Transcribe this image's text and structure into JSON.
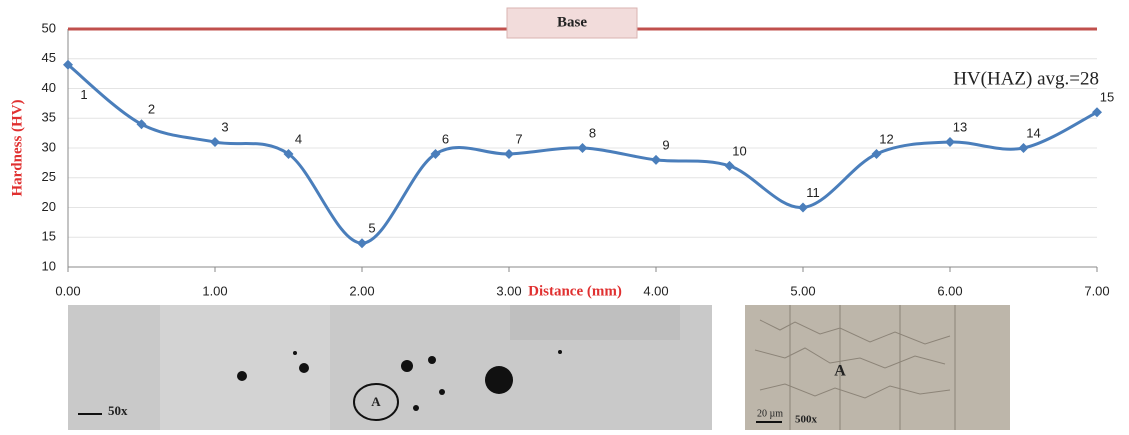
{
  "chart_data": {
    "type": "line",
    "ylabel": "Hardness (HV)",
    "xlabel": "Distance (mm)",
    "x": [
      0,
      0.5,
      1,
      1.5,
      2,
      2.5,
      3,
      3.5,
      4,
      4.5,
      5,
      5.5,
      6,
      6.5,
      7
    ],
    "series": [
      {
        "color": "#4a7ebb",
        "values": [
          44,
          34,
          31,
          29,
          14,
          29,
          29,
          30,
          28,
          27,
          20,
          29,
          31,
          30,
          36
        ],
        "point_labels": [
          "1",
          "2",
          "3",
          "4",
          "5",
          "6",
          "7",
          "8",
          "9",
          "10",
          "11",
          "12",
          "13",
          "14",
          "15"
        ]
      }
    ],
    "reference_line": {
      "label": "Base",
      "value": 50,
      "color": "#c0504d"
    },
    "annotation": "HV(HAZ) avg.=28",
    "xlim": [
      0,
      7
    ],
    "xticks": [
      {
        "value": 0,
        "label": "0.00"
      },
      {
        "value": 1,
        "label": "1.00"
      },
      {
        "value": 2,
        "label": "2.00"
      },
      {
        "value": 3,
        "label": "3.00"
      },
      {
        "value": 4,
        "label": "4.00"
      },
      {
        "value": 5,
        "label": "5.00"
      },
      {
        "value": 6,
        "label": "6.00"
      },
      {
        "value": 7,
        "label": "7.00"
      }
    ],
    "ylim": [
      10,
      50
    ],
    "yticks": [
      10,
      15,
      20,
      25,
      30,
      35,
      40,
      45,
      50
    ],
    "grid": true
  },
  "micrographs": [
    {
      "marker": "A",
      "magnification": "50x"
    },
    {
      "marker": "A",
      "magnification": "500x",
      "scale": "20 µm"
    }
  ]
}
